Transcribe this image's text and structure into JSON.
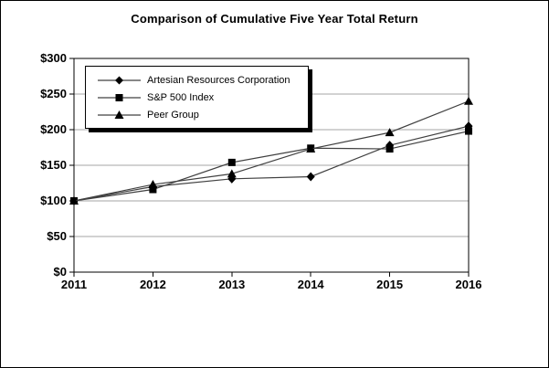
{
  "chart_data": {
    "type": "line",
    "title": "Comparison of Cumulative Five Year Total Return",
    "x": [
      2011,
      2012,
      2013,
      2014,
      2015,
      2016
    ],
    "x_tick_labels": [
      "2011",
      "2012",
      "2013",
      "2014",
      "2015",
      "2016"
    ],
    "y_ticks": [
      0,
      50,
      100,
      150,
      200,
      250,
      300
    ],
    "y_tick_labels": [
      "$0",
      "$50",
      "$100",
      "$150",
      "$200",
      "$250",
      "$300"
    ],
    "ylim": [
      0,
      300
    ],
    "grid": "horizontal",
    "legend_position": "top-left-inside",
    "series": [
      {
        "name": "Artesian Resources Corporation",
        "marker": "diamond",
        "values": [
          100,
          120,
          131,
          134,
          178,
          205
        ]
      },
      {
        "name": "S&P 500 Index",
        "marker": "square",
        "values": [
          100,
          116,
          154,
          174,
          173,
          198
        ]
      },
      {
        "name": "Peer Group",
        "marker": "triangle",
        "values": [
          100,
          123,
          138,
          173,
          196,
          240
        ]
      }
    ],
    "colors": {
      "line": "#404040",
      "marker": "#000000",
      "gridline": "#a6a6a6",
      "axis": "#000000",
      "background": "#ffffff"
    }
  }
}
